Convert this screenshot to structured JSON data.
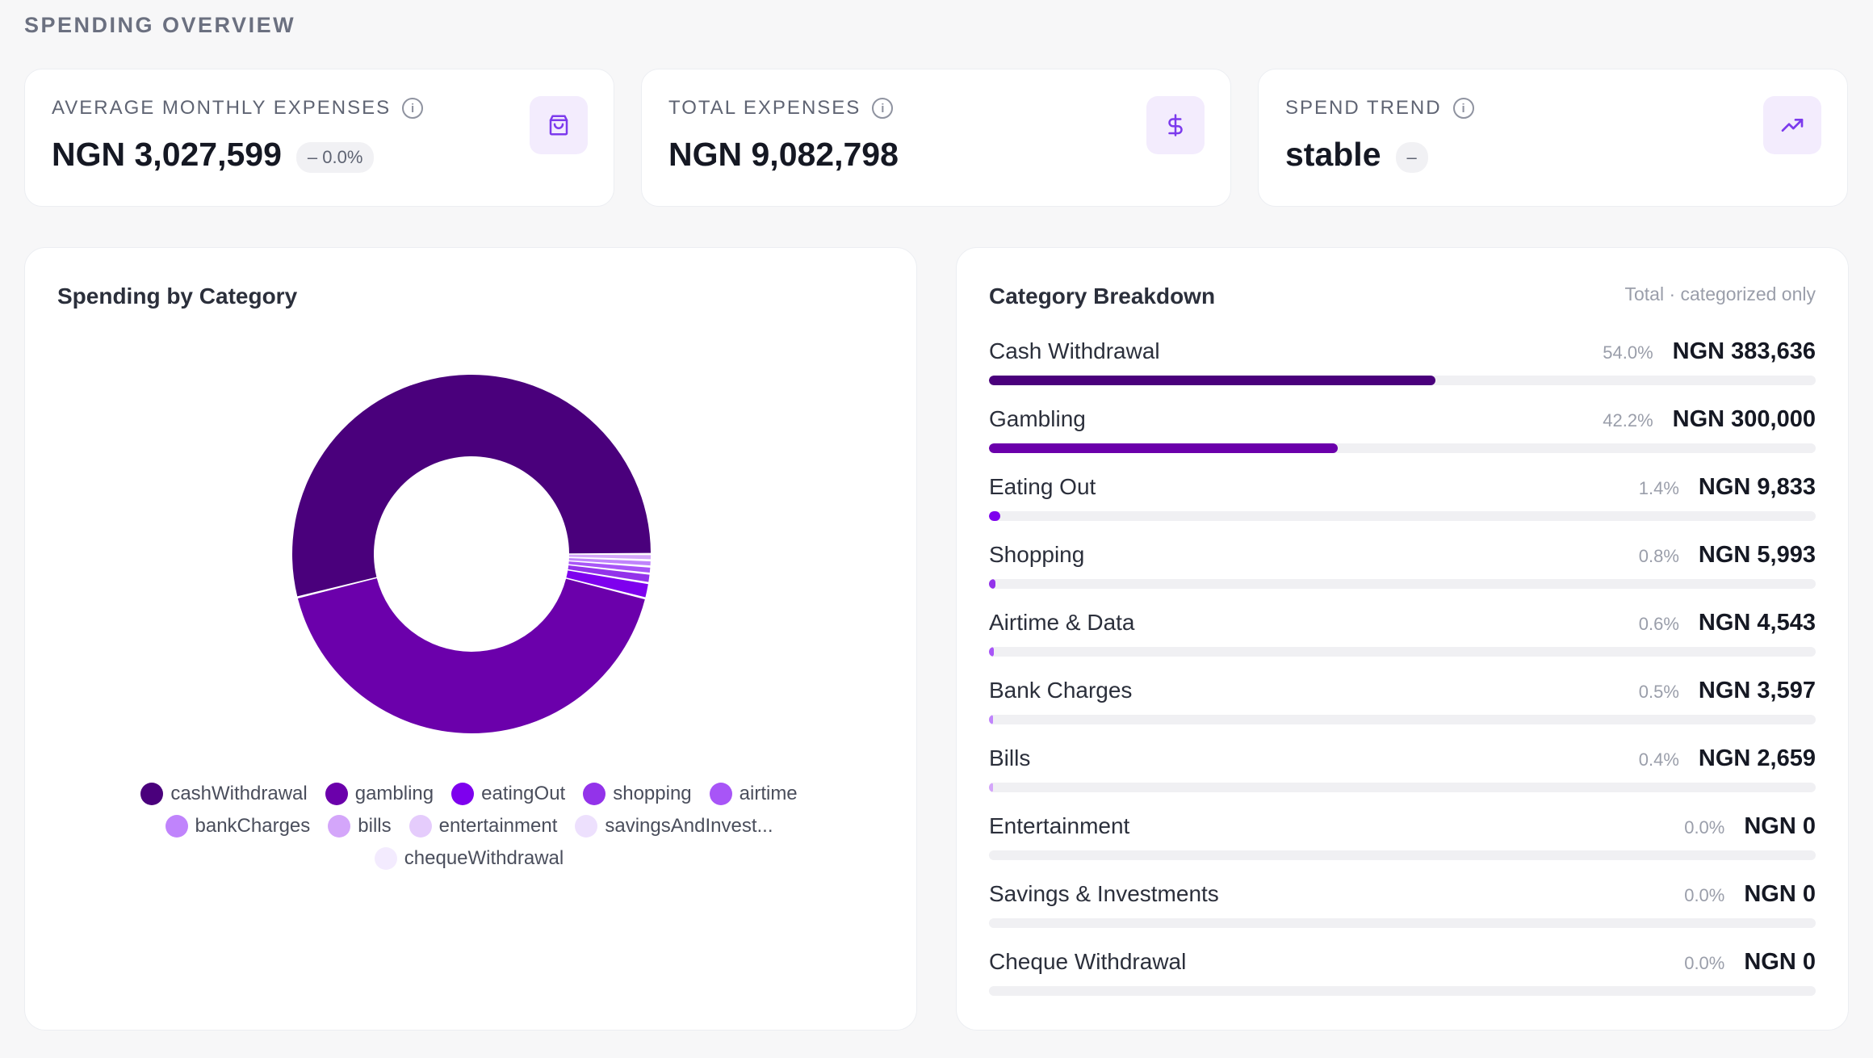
{
  "section_title": "SPENDING OVERVIEW",
  "stats": [
    {
      "label": "AVERAGE MONTHLY EXPENSES",
      "value": "NGN 3,027,599",
      "badge": "– 0.0%",
      "icon": "shopping-bag-icon"
    },
    {
      "label": "TOTAL EXPENSES",
      "value": "NGN 9,082,798",
      "badge": "",
      "icon": "dollar-icon"
    },
    {
      "label": "SPEND TREND",
      "value": "stable",
      "badge": "–",
      "icon": "trending-up-icon"
    }
  ],
  "donut_panel": {
    "title": "Spending by Category"
  },
  "breakdown_panel": {
    "title": "Category Breakdown",
    "note": "Total · categorized only"
  },
  "colors": {
    "accent": "#7c3aed",
    "cashWithdrawal": "#4a007c",
    "gambling": "#6b00ab",
    "eatingOut": "#7e00ee",
    "shopping": "#9333ea",
    "airtime": "#a855f7",
    "bankCharges": "#c084fc",
    "bills": "#d4a6fa",
    "entertainment": "#e5ccfc",
    "savingsAndInvestments": "#ede0fd",
    "chequeWithdrawal": "#f3ebfe"
  },
  "chart_data": {
    "type": "pie",
    "title": "Spending by Category",
    "donut": true,
    "legend_position": "bottom",
    "series": [
      {
        "name": "cashWithdrawal",
        "legend_label": "cashWithdrawal",
        "value": 383636,
        "color": "#4a007c"
      },
      {
        "name": "gambling",
        "legend_label": "gambling",
        "value": 300000,
        "color": "#6b00ab"
      },
      {
        "name": "eatingOut",
        "legend_label": "eatingOut",
        "value": 9833,
        "color": "#7e00ee"
      },
      {
        "name": "shopping",
        "legend_label": "shopping",
        "value": 5993,
        "color": "#9333ea"
      },
      {
        "name": "airtime",
        "legend_label": "airtime",
        "value": 4543,
        "color": "#a855f7"
      },
      {
        "name": "bankCharges",
        "legend_label": "bankCharges",
        "value": 3597,
        "color": "#c084fc"
      },
      {
        "name": "bills",
        "legend_label": "bills",
        "value": 2659,
        "color": "#d4a6fa"
      },
      {
        "name": "entertainment",
        "legend_label": "entertainment",
        "value": 0,
        "color": "#e5ccfc"
      },
      {
        "name": "savingsAndInvestments",
        "legend_label": "savingsAndInvest...",
        "value": 0,
        "color": "#ede0fd"
      },
      {
        "name": "chequeWithdrawal",
        "legend_label": "chequeWithdrawal",
        "value": 0,
        "color": "#f3ebfe"
      }
    ]
  },
  "breakdown": [
    {
      "name": "Cash Withdrawal",
      "pct": "54.0%",
      "amount": "NGN 383,636",
      "share": 0.54,
      "color": "#4a007c"
    },
    {
      "name": "Gambling",
      "pct": "42.2%",
      "amount": "NGN 300,000",
      "share": 0.422,
      "color": "#6b00ab"
    },
    {
      "name": "Eating Out",
      "pct": "1.4%",
      "amount": "NGN 9,833",
      "share": 0.014,
      "color": "#7e00ee"
    },
    {
      "name": "Shopping",
      "pct": "0.8%",
      "amount": "NGN 5,993",
      "share": 0.008,
      "color": "#9333ea"
    },
    {
      "name": "Airtime & Data",
      "pct": "0.6%",
      "amount": "NGN 4,543",
      "share": 0.006,
      "color": "#a855f7"
    },
    {
      "name": "Bank Charges",
      "pct": "0.5%",
      "amount": "NGN 3,597",
      "share": 0.005,
      "color": "#c084fc"
    },
    {
      "name": "Bills",
      "pct": "0.4%",
      "amount": "NGN 2,659",
      "share": 0.004,
      "color": "#d4a6fa"
    },
    {
      "name": "Entertainment",
      "pct": "0.0%",
      "amount": "NGN 0",
      "share": 0,
      "color": "#e5ccfc"
    },
    {
      "name": "Savings & Investments",
      "pct": "0.0%",
      "amount": "NGN 0",
      "share": 0,
      "color": "#ede0fd"
    },
    {
      "name": "Cheque Withdrawal",
      "pct": "0.0%",
      "amount": "NGN 0",
      "share": 0,
      "color": "#f3ebfe"
    }
  ]
}
